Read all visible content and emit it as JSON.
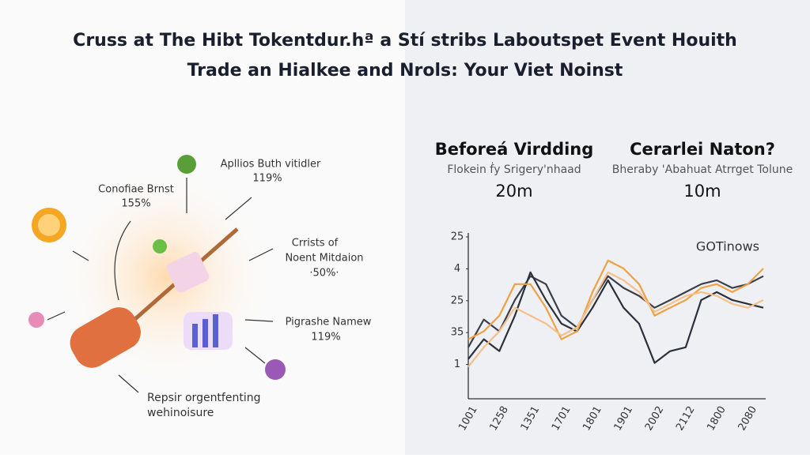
{
  "header": {
    "title_line1": "Cruss at The Hibt Tokentdur.hª a Stí stribs Laboutspet Event Houith",
    "title_line2": "Trade an Hialkee and Nrols: Your Viet Noinst"
  },
  "infographic": {
    "items": [
      {
        "label": "Conofiae Brnst",
        "value": "155%"
      },
      {
        "label": "Apllios Buth vitidler",
        "value": "119%"
      },
      {
        "label": "Crrists of",
        "label2": "Noent Mitdaion",
        "value": "·50%·"
      },
      {
        "label": "Pigrashe Namew",
        "value": "119%"
      },
      {
        "label": "Repsir orgentfenting",
        "label2": "wehinoisure"
      }
    ]
  },
  "comparison": [
    {
      "title": "Beforeá Virdding",
      "subtitle": "Flokein ḟy Srigery'nhaad",
      "value": "20m"
    },
    {
      "title": "Cerarlei Naton?",
      "subtitle": "Bheraby 'Abahuat Atrrget Tolune",
      "value": "10m"
    }
  ],
  "chart_data": {
    "type": "line",
    "annotation": "GOTinows",
    "categories": [
      "1001",
      null,
      "1258",
      null,
      "1351",
      null,
      "1701",
      null,
      "1801",
      null,
      "1901",
      null,
      "2002",
      null,
      "2112",
      null,
      "1800",
      null,
      "2080",
      null
    ],
    "series": [
      {
        "color": "#3a3f4a",
        "values": [
          1.54,
          2.41,
          2.04,
          3.02,
          3.77,
          3.52,
          2.53,
          2.16,
          3.02,
          3.77,
          3.4,
          3.15,
          2.78,
          3.02,
          3.27,
          3.52,
          3.64,
          3.4,
          3.52,
          3.77
        ]
      },
      {
        "color": "#2b303a",
        "values": [
          1.17,
          1.79,
          1.42,
          2.53,
          3.89,
          3.02,
          2.28,
          2.04,
          2.78,
          3.64,
          2.78,
          2.28,
          1.05,
          1.42,
          1.54,
          3.02,
          3.27,
          3.02,
          2.9,
          2.78
        ]
      },
      {
        "color": "#f0a045",
        "values": [
          1.79,
          2.04,
          2.53,
          3.52,
          3.52,
          2.78,
          1.79,
          2.04,
          3.27,
          4.26,
          4.01,
          3.52,
          2.53,
          2.78,
          3.02,
          3.4,
          3.52,
          3.27,
          3.52,
          4.01
        ]
      },
      {
        "color": "#f5c08a",
        "values": [
          0.93,
          1.54,
          2.04,
          2.78,
          2.53,
          2.28,
          1.91,
          2.16,
          3.02,
          3.89,
          3.64,
          3.27,
          2.65,
          2.9,
          3.15,
          3.27,
          3.15,
          2.9,
          2.78,
          3.02
        ]
      }
    ],
    "ylim": [
      0,
      5
    ],
    "yticks": [
      1,
      {
        "value": 2,
        "label": "35"
      },
      {
        "value": 3,
        "label": "25"
      },
      {
        "value": 4,
        "label": "4"
      },
      {
        "value": 5,
        "label": "25"
      }
    ]
  }
}
